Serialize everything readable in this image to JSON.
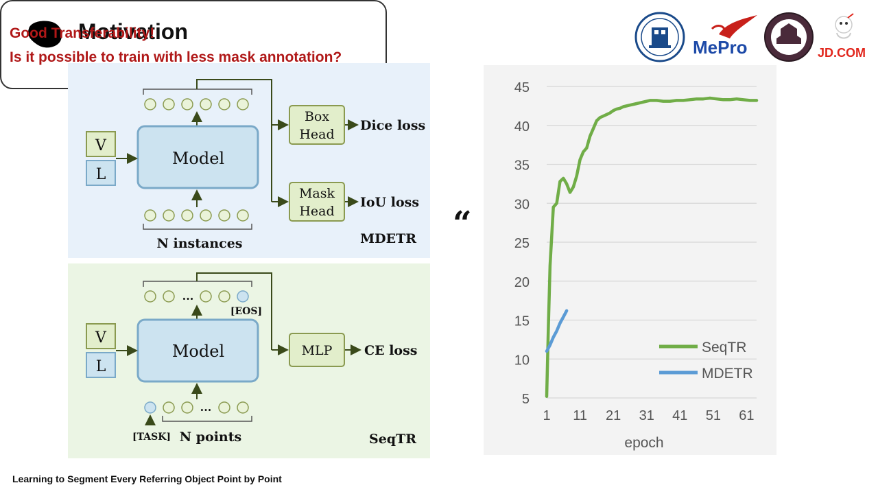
{
  "slide": {
    "title": "Motivation",
    "footer": "Learning to Segment Every Referring Object Point by Point"
  },
  "logos": {
    "mepro": "MePro",
    "jd": "JD.COM"
  },
  "mdetr_diagram": {
    "v_label": "V",
    "l_label": "L",
    "model_label": "Model",
    "box_head_l1": "Box",
    "box_head_l2": "Head",
    "mask_head_l1": "Mask",
    "mask_head_l2": "Head",
    "dice_loss": "Dice loss",
    "iou_loss": "IoU loss",
    "instances": "N instances",
    "name": "MDETR"
  },
  "seqtr_diagram": {
    "v_label": "V",
    "l_label": "L",
    "model_label": "Model",
    "mlp_label": "MLP",
    "ce_loss": "CE loss",
    "dots": "...",
    "eos": "[EOS]",
    "task": "[TASK]",
    "points": "N points",
    "name": "SeqTR"
  },
  "callout": {
    "line1": "Good Transferability!",
    "line2": "Is it possible to train with less mask annotation?"
  },
  "chart_data": {
    "type": "line",
    "title": "",
    "xlabel": "epoch",
    "ylabel": "",
    "xlim": [
      1,
      64
    ],
    "ylim": [
      5,
      45
    ],
    "xticks": [
      1,
      11,
      21,
      31,
      41,
      51,
      61
    ],
    "yticks": [
      5,
      10,
      15,
      20,
      25,
      30,
      35,
      40,
      45
    ],
    "grid": true,
    "legend": "bottom-right",
    "series": [
      {
        "name": "SeqTR",
        "color": "#70ad47",
        "x": [
          1,
          1.5,
          2,
          3,
          4,
          5,
          6,
          7,
          8,
          9,
          10,
          11,
          12,
          13,
          14,
          15,
          16,
          17,
          18,
          19,
          20,
          21,
          22,
          23,
          24,
          26,
          28,
          30,
          32,
          34,
          36,
          38,
          40,
          42,
          44,
          46,
          48,
          50,
          52,
          54,
          56,
          58,
          60,
          62,
          64
        ],
        "y": [
          5.2,
          14,
          22,
          29.5,
          30,
          32.8,
          33.2,
          32.5,
          31.4,
          32.1,
          33.5,
          35.6,
          36.6,
          37.1,
          38.6,
          39.6,
          40.6,
          41.0,
          41.2,
          41.4,
          41.6,
          41.9,
          42.1,
          42.2,
          42.4,
          42.6,
          42.8,
          43.0,
          43.2,
          43.2,
          43.1,
          43.1,
          43.2,
          43.2,
          43.3,
          43.4,
          43.4,
          43.5,
          43.4,
          43.3,
          43.3,
          43.4,
          43.3,
          43.2,
          43.2
        ]
      },
      {
        "name": "MDETR",
        "color": "#5b9bd5",
        "x": [
          1,
          2,
          3,
          4,
          5,
          6,
          7
        ],
        "y": [
          11,
          11.8,
          12.8,
          13.6,
          14.6,
          15.4,
          16.2
        ]
      }
    ]
  }
}
